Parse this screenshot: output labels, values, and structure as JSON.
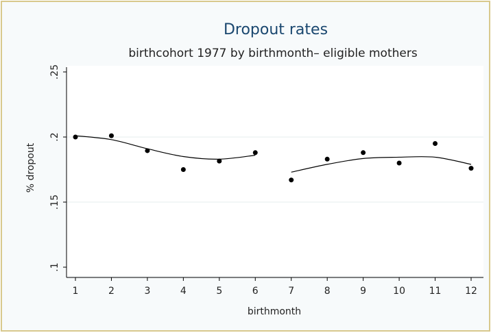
{
  "chart_data": {
    "type": "scatter",
    "title": "Dropout rates",
    "subtitle": "birthcohort 1977 by birthmonth– eligible mothers",
    "x_label": "birthmonth",
    "y_label": "% dropout",
    "x": [
      1,
      2,
      3,
      4,
      5,
      6,
      7,
      8,
      9,
      10,
      11,
      12
    ],
    "series": [
      {
        "type": "scatter",
        "color": "#000000",
        "values": [
          0.2,
          0.201,
          0.1895,
          0.175,
          0.1815,
          0.188,
          0.167,
          0.183,
          0.188,
          0.18,
          0.195,
          0.176
        ]
      },
      {
        "type": "line",
        "color": "#000000",
        "values": [
          0.201,
          0.198,
          0.191,
          0.185,
          0.183,
          0.186,
          0.173,
          0.179,
          0.1835,
          0.1845,
          0.1845,
          0.179
        ]
      }
    ],
    "segments": [
      [
        0,
        5
      ],
      [
        6,
        11
      ]
    ],
    "xlim": [
      1,
      12
    ],
    "xticks": [
      1,
      2,
      3,
      4,
      5,
      6,
      7,
      8,
      9,
      10,
      11,
      12
    ],
    "ylim": [
      0.1,
      0.25
    ],
    "yticks": [
      {
        "value": 0.1,
        "label": ".1"
      },
      {
        "value": 0.15,
        "label": ".15"
      },
      {
        "value": 0.2,
        "label": ".2"
      },
      {
        "value": 0.25,
        "label": ".25"
      }
    ],
    "grid": true
  }
}
